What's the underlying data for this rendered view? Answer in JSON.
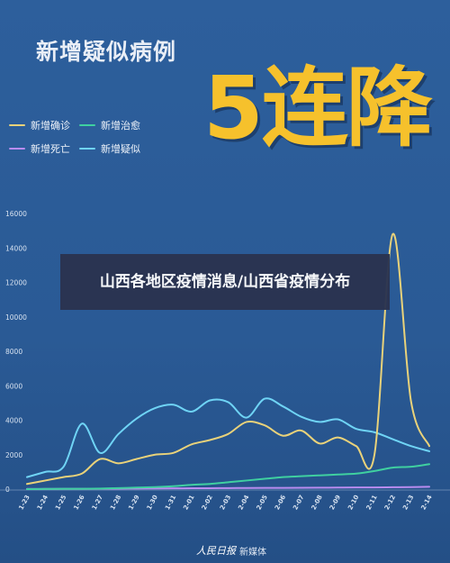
{
  "header": {
    "subtitle": "新增疑似病例",
    "headline": "5连降"
  },
  "banner": {
    "text": "山西各地区疫情消息/山西省疫情分布"
  },
  "footer": {
    "logo": "人民日报",
    "label": "新媒体"
  },
  "colors": {
    "background": "#2b5c98",
    "confirmed": "#e9d27a",
    "death": "#b98cf0",
    "cured": "#3fd0a0",
    "suspected": "#6fd4f5"
  },
  "chart_data": {
    "type": "line",
    "ylim": [
      0,
      16000
    ],
    "yticks": [
      "0",
      "2000",
      "4000",
      "6000",
      "8000",
      "10000",
      "12000",
      "14000",
      "16000"
    ],
    "categories": [
      "1-23",
      "1-24",
      "1-25",
      "1-26",
      "1-27",
      "1-28",
      "1-29",
      "1-30",
      "1-31",
      "2-01",
      "2-02",
      "2-03",
      "2-04",
      "2-05",
      "2-06",
      "2-07",
      "2-08",
      "2-09",
      "2-10",
      "2-11",
      "2-12",
      "2-13",
      "2-14"
    ],
    "series": [
      {
        "name": "新增确诊",
        "color": "#e9d27a",
        "values": [
          300,
          500,
          700,
          900,
          1750,
          1500,
          1750,
          2000,
          2100,
          2600,
          2850,
          3200,
          3900,
          3700,
          3100,
          3400,
          2650,
          3000,
          2500,
          2000,
          14800,
          5100,
          2500
        ]
      },
      {
        "name": "新增治愈",
        "color": "#3fd0a0",
        "values": [
          0,
          10,
          20,
          20,
          30,
          60,
          90,
          120,
          170,
          250,
          300,
          400,
          500,
          600,
          700,
          750,
          800,
          850,
          900,
          1050,
          1250,
          1300,
          1450
        ]
      },
      {
        "name": "新增死亡",
        "color": "#b98cf0",
        "values": [
          10,
          10,
          20,
          20,
          25,
          25,
          35,
          40,
          45,
          50,
          55,
          60,
          65,
          70,
          75,
          80,
          85,
          90,
          95,
          100,
          110,
          120,
          140
        ]
      },
      {
        "name": "新增疑似",
        "color": "#6fd4f5",
        "values": [
          700,
          1000,
          1300,
          3800,
          2100,
          3200,
          4100,
          4700,
          4900,
          4500,
          5150,
          5050,
          4150,
          5250,
          4800,
          4200,
          3900,
          4050,
          3500,
          3300,
          2900,
          2500,
          2200
        ]
      }
    ]
  }
}
